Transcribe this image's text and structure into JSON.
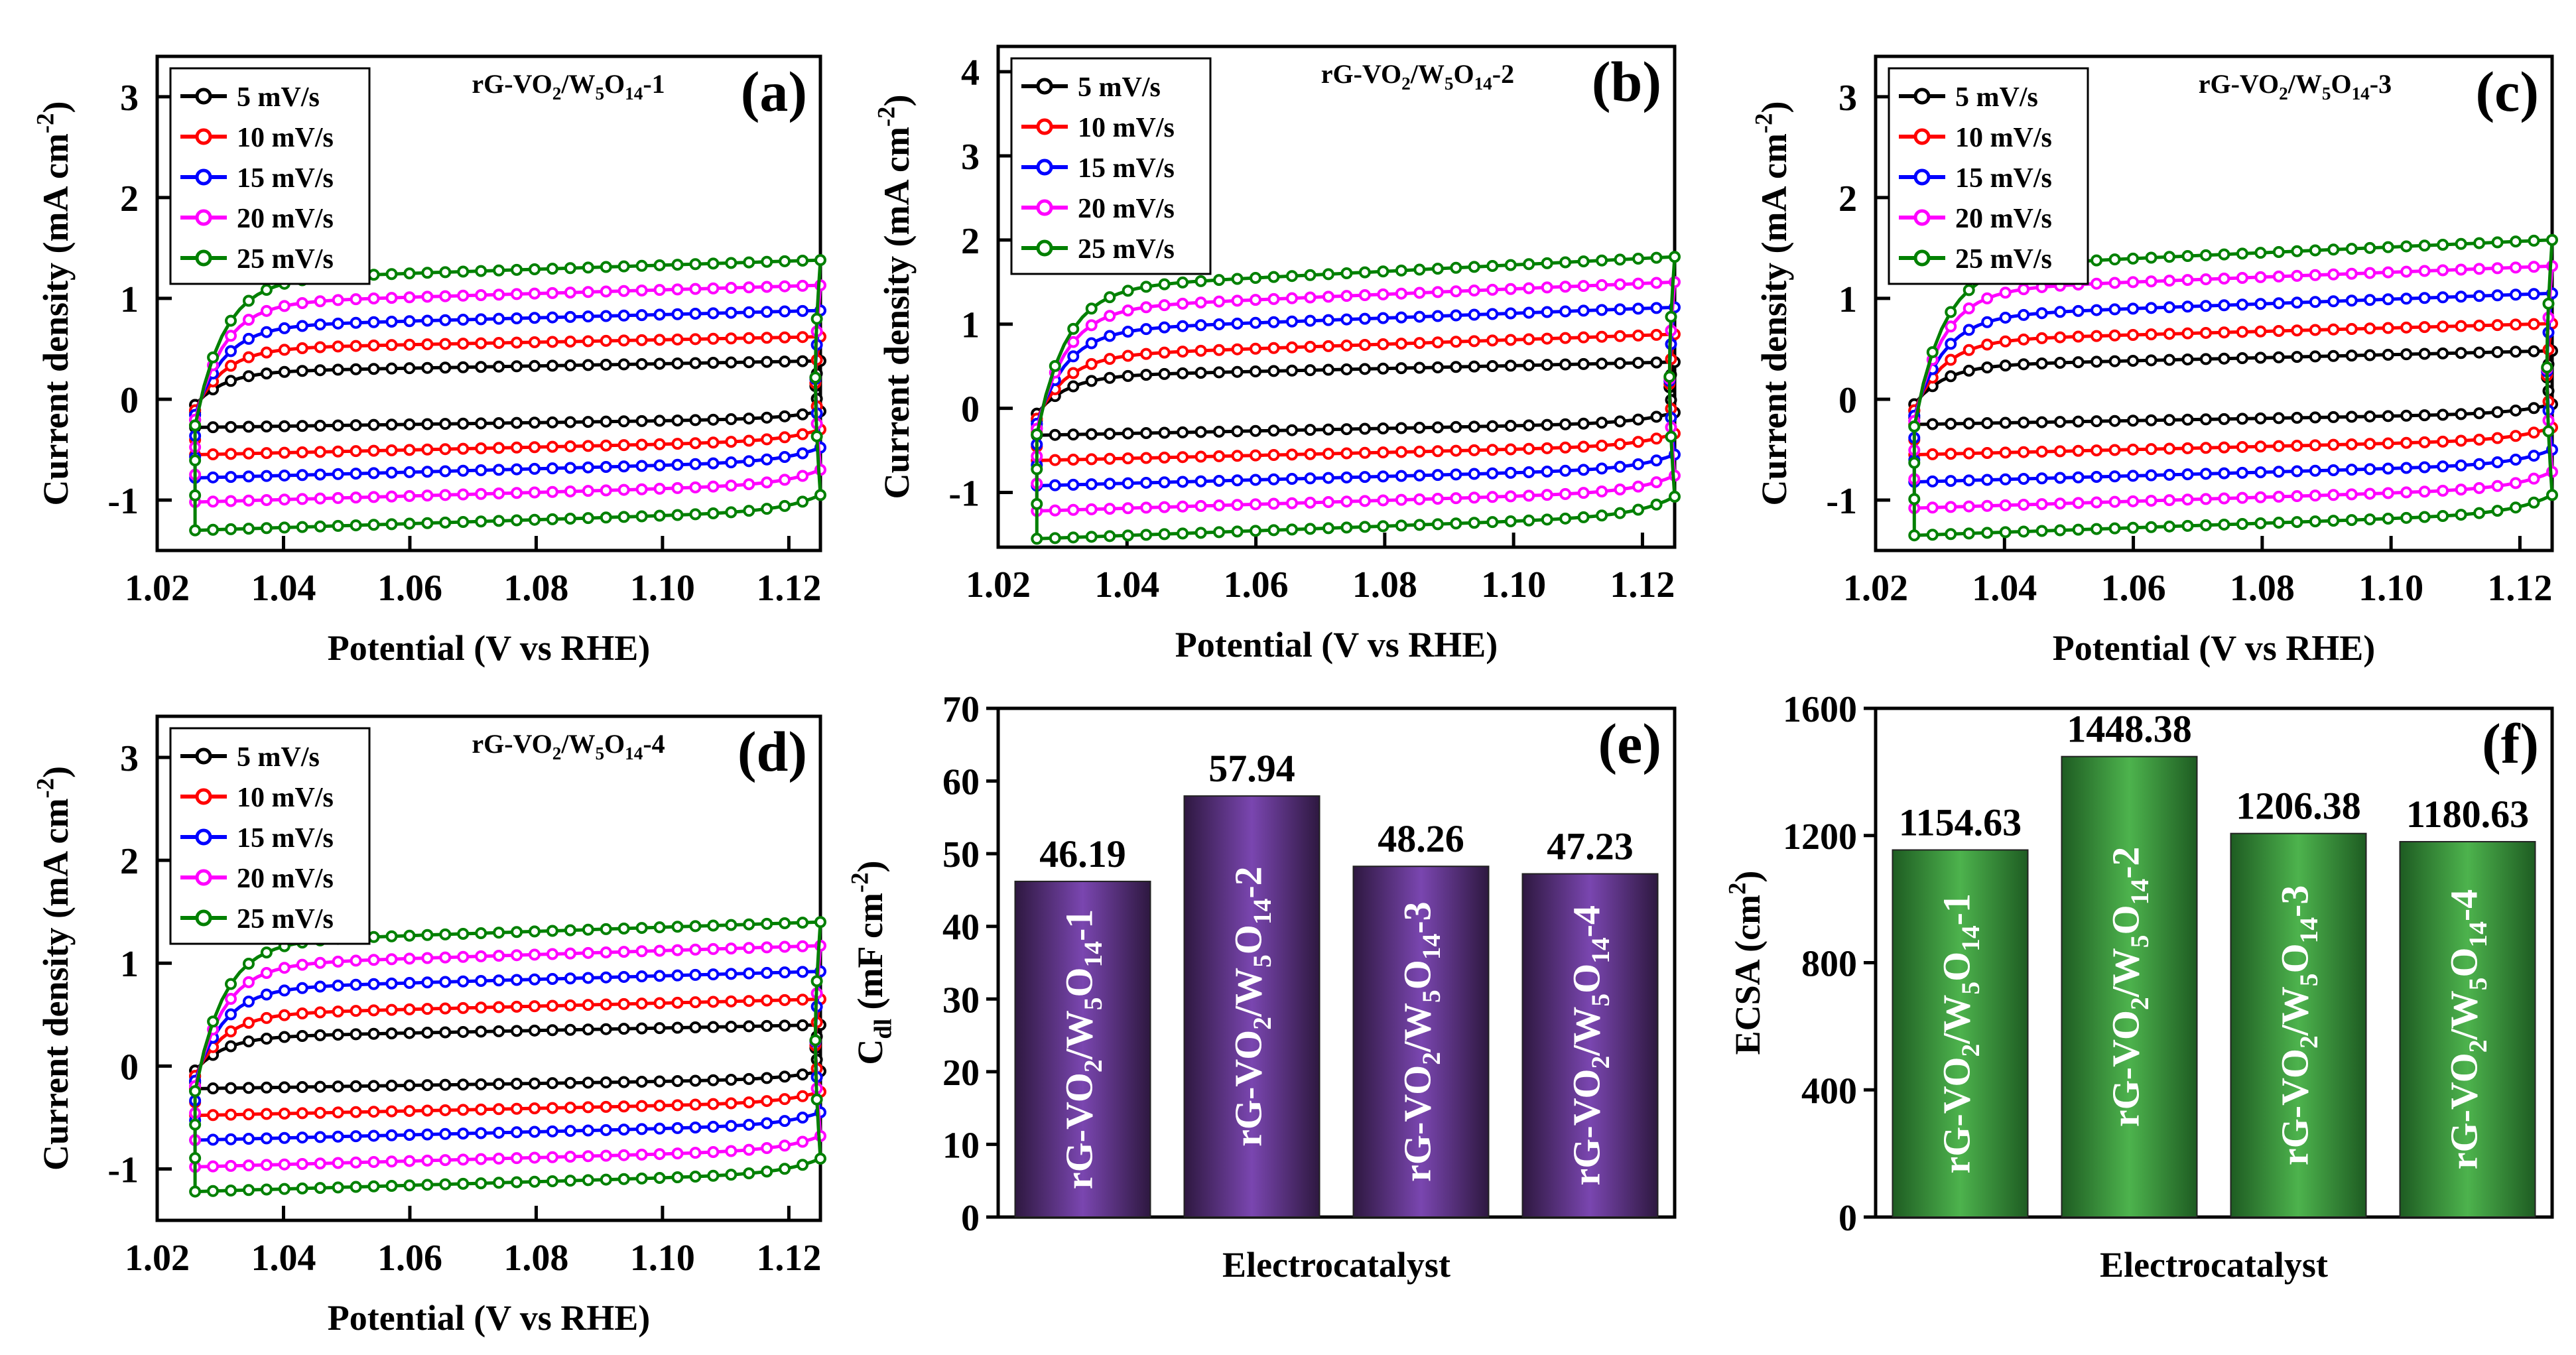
{
  "chart_data": [
    {
      "type": "line",
      "panel_label": "(a)",
      "sample": "rG-VO2/W5O14-1",
      "xlabel": "Potential (V vs RHE)",
      "ylabel": "Current density (mA cm-2)",
      "xlim": [
        1.02,
        1.125
      ],
      "ylim": [
        -1.5,
        3.4
      ],
      "xticks": [
        1.02,
        1.04,
        1.06,
        1.08,
        1.1,
        1.12
      ],
      "xtick_labels": [
        "1.02",
        "1.04",
        "1.06",
        "1.08",
        "1.10",
        "1.12"
      ],
      "yticks": [
        -1,
        0,
        1,
        2,
        3
      ],
      "ytick_labels": [
        "-1",
        "0",
        "1",
        "2",
        "3"
      ],
      "x_start": 1.026,
      "x_end": 1.125,
      "legend": "top-left",
      "series": [
        {
          "name": "5 mV/s",
          "color": "#000000",
          "anodic": [
            0.27,
            0.38
          ],
          "cathodic": [
            -0.28,
            -0.12
          ]
        },
        {
          "name": "10 mV/s",
          "color": "#ff0000",
          "anodic": [
            0.5,
            0.62
          ],
          "cathodic": [
            -0.55,
            -0.3
          ]
        },
        {
          "name": "15 mV/s",
          "color": "#0000ff",
          "anodic": [
            0.72,
            0.88
          ],
          "cathodic": [
            -0.78,
            -0.48
          ]
        },
        {
          "name": "20 mV/s",
          "color": "#ff00ff",
          "anodic": [
            0.95,
            1.13
          ],
          "cathodic": [
            -1.02,
            -0.7
          ]
        },
        {
          "name": "25 mV/s",
          "color": "#008000",
          "anodic": [
            1.18,
            1.38
          ],
          "cathodic": [
            -1.3,
            -0.95
          ]
        }
      ]
    },
    {
      "type": "line",
      "panel_label": "(b)",
      "sample": "rG-VO2/W5O14-2",
      "xlabel": "Potential (V vs RHE)",
      "ylabel": "Current density (mA cm-2)",
      "xlim": [
        1.02,
        1.125
      ],
      "ylim": [
        -1.65,
        4.3
      ],
      "xticks": [
        1.02,
        1.04,
        1.06,
        1.08,
        1.1,
        1.12
      ],
      "xtick_labels": [
        "1.02",
        "1.04",
        "1.06",
        "1.08",
        "1.10",
        "1.12"
      ],
      "yticks": [
        -1,
        0,
        1,
        2,
        3,
        4
      ],
      "ytick_labels": [
        "-1",
        "0",
        "1",
        "2",
        "3",
        "4"
      ],
      "x_start": 1.026,
      "x_end": 1.125,
      "legend": "top-left",
      "series": [
        {
          "name": "5 mV/s",
          "color": "#000000",
          "anodic": [
            0.38,
            0.55
          ],
          "cathodic": [
            -0.32,
            -0.05
          ]
        },
        {
          "name": "10 mV/s",
          "color": "#ff0000",
          "anodic": [
            0.62,
            0.88
          ],
          "cathodic": [
            -0.62,
            -0.3
          ]
        },
        {
          "name": "15 mV/s",
          "color": "#0000ff",
          "anodic": [
            0.92,
            1.2
          ],
          "cathodic": [
            -0.92,
            -0.55
          ]
        },
        {
          "name": "20 mV/s",
          "color": "#ff00ff",
          "anodic": [
            1.18,
            1.5
          ],
          "cathodic": [
            -1.22,
            -0.8
          ]
        },
        {
          "name": "25 mV/s",
          "color": "#008000",
          "anodic": [
            1.42,
            1.8
          ],
          "cathodic": [
            -1.55,
            -1.05
          ]
        }
      ]
    },
    {
      "type": "line",
      "panel_label": "(c)",
      "sample": "rG-VO2/W5O14-3",
      "xlabel": "Potential (V vs RHE)",
      "ylabel": "Current density (mA cm-2)",
      "xlim": [
        1.02,
        1.125
      ],
      "ylim": [
        -1.5,
        3.4
      ],
      "xticks": [
        1.02,
        1.04,
        1.06,
        1.08,
        1.1,
        1.12
      ],
      "xtick_labels": [
        "1.02",
        "1.04",
        "1.06",
        "1.08",
        "1.10",
        "1.12"
      ],
      "yticks": [
        -1,
        0,
        1,
        2,
        3
      ],
      "ytick_labels": [
        "-1",
        "0",
        "1",
        "2",
        "3"
      ],
      "x_start": 1.026,
      "x_end": 1.125,
      "legend": "top-left",
      "series": [
        {
          "name": "5 mV/s",
          "color": "#000000",
          "anodic": [
            0.33,
            0.48
          ],
          "cathodic": [
            -0.25,
            -0.05
          ]
        },
        {
          "name": "10 mV/s",
          "color": "#ff0000",
          "anodic": [
            0.58,
            0.75
          ],
          "cathodic": [
            -0.55,
            -0.28
          ]
        },
        {
          "name": "15 mV/s",
          "color": "#0000ff",
          "anodic": [
            0.82,
            1.05
          ],
          "cathodic": [
            -0.82,
            -0.5
          ]
        },
        {
          "name": "20 mV/s",
          "color": "#ff00ff",
          "anodic": [
            1.08,
            1.32
          ],
          "cathodic": [
            -1.08,
            -0.72
          ]
        },
        {
          "name": "25 mV/s",
          "color": "#008000",
          "anodic": [
            1.3,
            1.58
          ],
          "cathodic": [
            -1.35,
            -0.95
          ]
        }
      ]
    },
    {
      "type": "line",
      "panel_label": "(d)",
      "sample": "rG-VO2/W5O14-4",
      "xlabel": "Potential (V vs RHE)",
      "ylabel": "Current density (mA cm-2)",
      "xlim": [
        1.02,
        1.125
      ],
      "ylim": [
        -1.5,
        3.4
      ],
      "xticks": [
        1.02,
        1.04,
        1.06,
        1.08,
        1.1,
        1.12
      ],
      "xtick_labels": [
        "1.02",
        "1.04",
        "1.06",
        "1.08",
        "1.10",
        "1.12"
      ],
      "yticks": [
        -1,
        0,
        1,
        2,
        3
      ],
      "ytick_labels": [
        "-1",
        "0",
        "1",
        "2",
        "3"
      ],
      "x_start": 1.026,
      "x_end": 1.125,
      "legend": "top-left",
      "series": [
        {
          "name": "5 mV/s",
          "color": "#000000",
          "anodic": [
            0.28,
            0.4
          ],
          "cathodic": [
            -0.22,
            -0.05
          ]
        },
        {
          "name": "10 mV/s",
          "color": "#ff0000",
          "anodic": [
            0.5,
            0.65
          ],
          "cathodic": [
            -0.48,
            -0.25
          ]
        },
        {
          "name": "15 mV/s",
          "color": "#0000ff",
          "anodic": [
            0.75,
            0.92
          ],
          "cathodic": [
            -0.72,
            -0.45
          ]
        },
        {
          "name": "20 mV/s",
          "color": "#ff00ff",
          "anodic": [
            0.98,
            1.17
          ],
          "cathodic": [
            -0.98,
            -0.68
          ]
        },
        {
          "name": "25 mV/s",
          "color": "#008000",
          "anodic": [
            1.2,
            1.4
          ],
          "cathodic": [
            -1.22,
            -0.9
          ]
        }
      ]
    },
    {
      "type": "bar",
      "panel_label": "(e)",
      "xlabel": "Electrocatalyst",
      "ylabel": "Cdl (mF cm-2)",
      "ylim": [
        0,
        70
      ],
      "yticks": [
        0,
        10,
        20,
        30,
        40,
        50,
        60,
        70
      ],
      "ytick_labels": [
        "0",
        "10",
        "20",
        "30",
        "40",
        "50",
        "60",
        "70"
      ],
      "categories": [
        "rG-VO2/W5O14-1",
        "rG-VO2/W5O14-2",
        "rG-VO2/W5O14-3",
        "rG-VO2/W5O14-4"
      ],
      "values": [
        46.19,
        57.94,
        48.26,
        47.23
      ],
      "value_labels": [
        "46.19",
        "57.94",
        "48.26",
        "47.23"
      ],
      "bar_color": "#6a3d9a"
    },
    {
      "type": "bar",
      "panel_label": "(f)",
      "xlabel": "Electrocatalyst",
      "ylabel": "ECSA (cm2)",
      "ylim": [
        0,
        1600
      ],
      "yticks": [
        0,
        400,
        800,
        1200,
        1600
      ],
      "ytick_labels": [
        "0",
        "400",
        "800",
        "1200",
        "1600"
      ],
      "categories": [
        "rG-VO2/W5O14-1",
        "rG-VO2/W5O14-2",
        "rG-VO2/W5O14-3",
        "rG-VO2/W5O14-4"
      ],
      "values": [
        1154.63,
        1448.38,
        1206.38,
        1180.63
      ],
      "value_labels": [
        "1154.63",
        "1448.38",
        "1206.38",
        "1180.63"
      ],
      "bar_color": "#3c9a3c"
    }
  ]
}
